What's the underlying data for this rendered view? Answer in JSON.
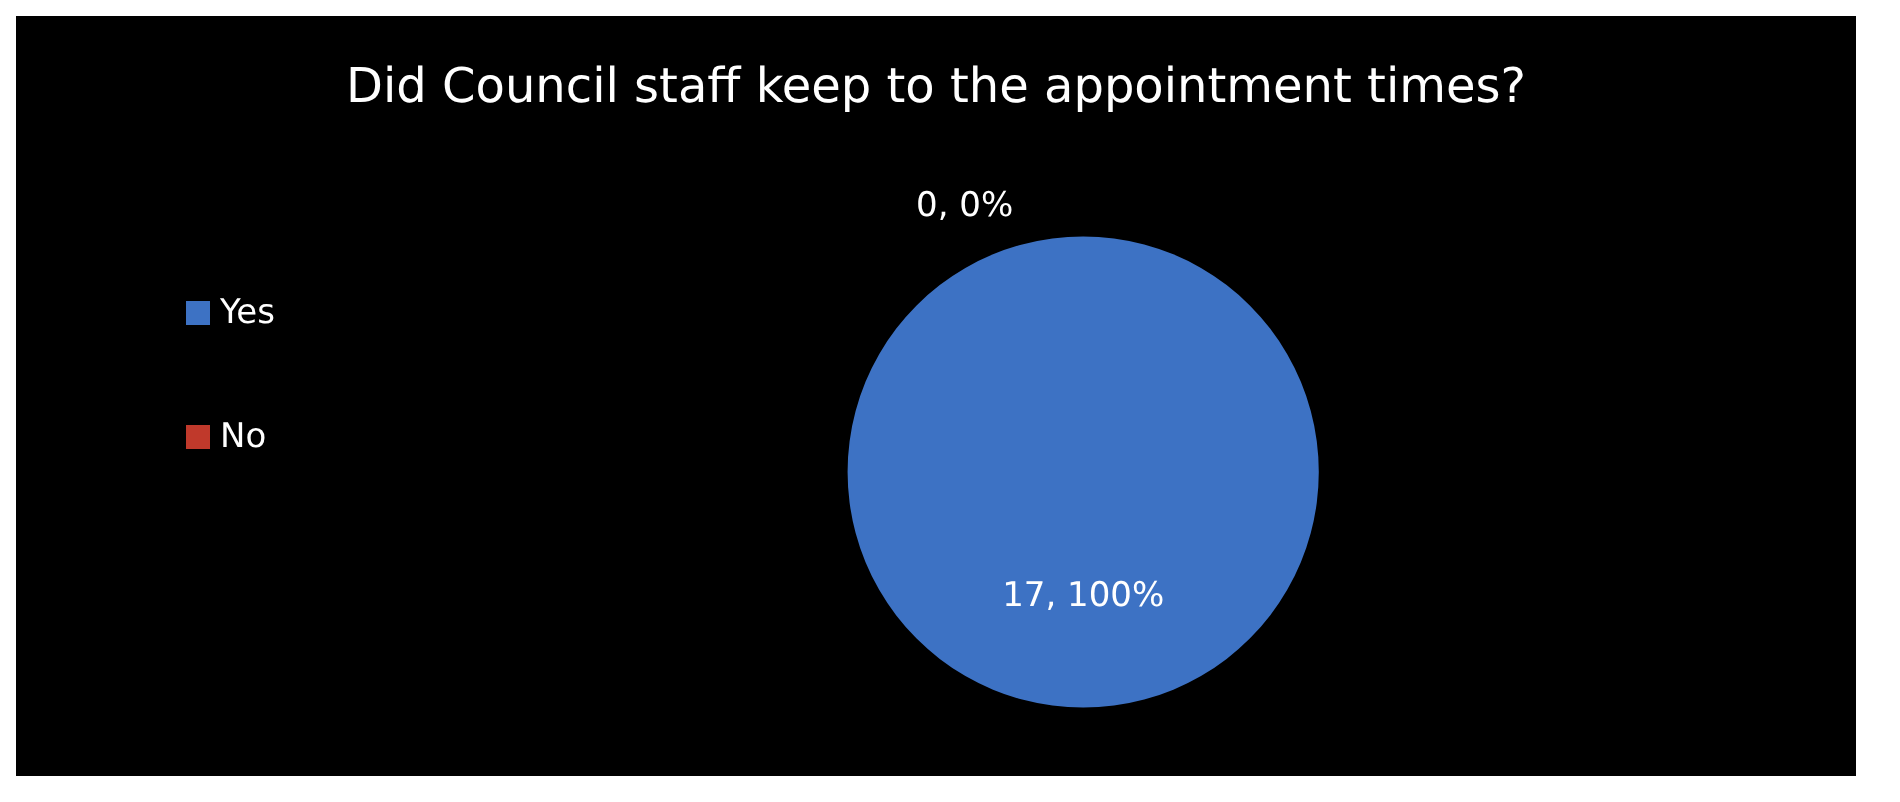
{
  "chart_data": {
    "type": "pie",
    "title": "Did Council staff keep to the appointment times?",
    "categories": [
      "Yes",
      "No"
    ],
    "values": [
      17,
      0
    ],
    "colors": [
      "#3d72c4",
      "#c0392b"
    ],
    "value_labels": [
      "17, 100%",
      "0, 0%"
    ],
    "legend": "left"
  }
}
